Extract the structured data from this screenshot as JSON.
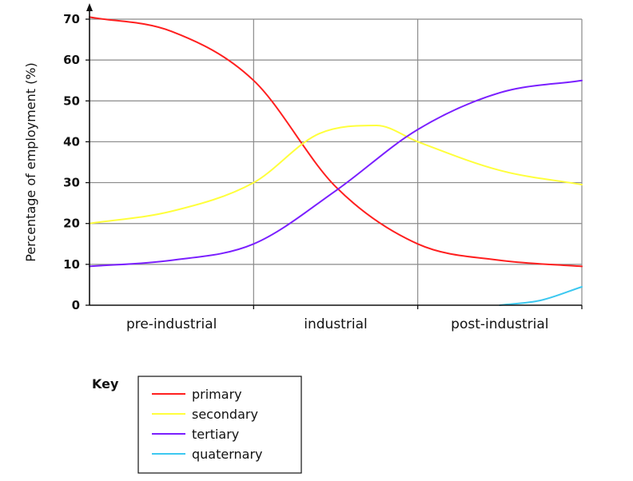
{
  "chart_data": {
    "type": "line",
    "title": "",
    "xlabel": "",
    "ylabel": "Percentage of employment (%)",
    "ylim": [
      0,
      70
    ],
    "yticks": [
      0,
      10,
      20,
      30,
      40,
      50,
      60,
      70
    ],
    "categories": [
      "pre-industrial",
      "industrial",
      "post-industrial"
    ],
    "x_range": [
      0,
      3
    ],
    "grid": true,
    "series": [
      {
        "name": "primary",
        "color": "#ff1f1f",
        "points": [
          [
            0,
            70.5
          ],
          [
            0.5,
            67
          ],
          [
            1,
            55
          ],
          [
            1.5,
            29
          ],
          [
            2,
            15
          ],
          [
            2.5,
            11
          ],
          [
            3,
            9.5
          ]
        ]
      },
      {
        "name": "secondary",
        "color": "#ffff3c",
        "points": [
          [
            0,
            20
          ],
          [
            0.5,
            23
          ],
          [
            1,
            30
          ],
          [
            1.4,
            42
          ],
          [
            1.75,
            44
          ],
          [
            2,
            40
          ],
          [
            2.5,
            33
          ],
          [
            3,
            29.5
          ]
        ]
      },
      {
        "name": "tertiary",
        "color": "#7a1fff",
        "points": [
          [
            0,
            9.5
          ],
          [
            0.5,
            11
          ],
          [
            1,
            15
          ],
          [
            1.5,
            28
          ],
          [
            2,
            43
          ],
          [
            2.5,
            52
          ],
          [
            3,
            55
          ]
        ]
      },
      {
        "name": "quaternary",
        "color": "#3cc8f0",
        "points": [
          [
            2.5,
            0
          ],
          [
            2.75,
            1.2
          ],
          [
            3,
            4.5
          ]
        ]
      }
    ],
    "legend": {
      "title": "Key",
      "position": "bottom-left"
    }
  }
}
